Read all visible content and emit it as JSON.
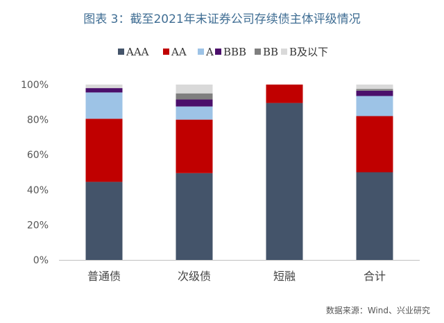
{
  "chart_data": {
    "type": "bar",
    "stacked": true,
    "title": "图表 3：截至2021年末证券公司存续债主体评级情况",
    "source": "数据来源：Wind、兴业研究",
    "categories": [
      "普通债",
      "次级债",
      "短融",
      "合计"
    ],
    "ylim": [
      0,
      100
    ],
    "yticks": [
      "0%",
      "20%",
      "40%",
      "60%",
      "80%",
      "100%"
    ],
    "ytick_values": [
      0,
      20,
      40,
      60,
      80,
      100
    ],
    "grid": false,
    "legend_position": "top",
    "series": [
      {
        "name": "AAA",
        "color": "#44546a",
        "values": [
          44.5,
          49.5,
          89.5,
          50
        ]
      },
      {
        "name": "AA",
        "color": "#c00000",
        "values": [
          36,
          30.5,
          10.5,
          32
        ]
      },
      {
        "name": "A",
        "color": "#9dc3e6",
        "values": [
          15,
          7.5,
          0,
          11.5
        ]
      },
      {
        "name": "BBB",
        "color": "#4b0f6b",
        "values": [
          2.5,
          4,
          0,
          3
        ]
      },
      {
        "name": "BB",
        "color": "#7f7f7f",
        "values": [
          0,
          3.5,
          0,
          1
        ]
      },
      {
        "name": "B及以下",
        "color": "#d9d9d9",
        "values": [
          2,
          5,
          0,
          2.5
        ]
      }
    ]
  }
}
